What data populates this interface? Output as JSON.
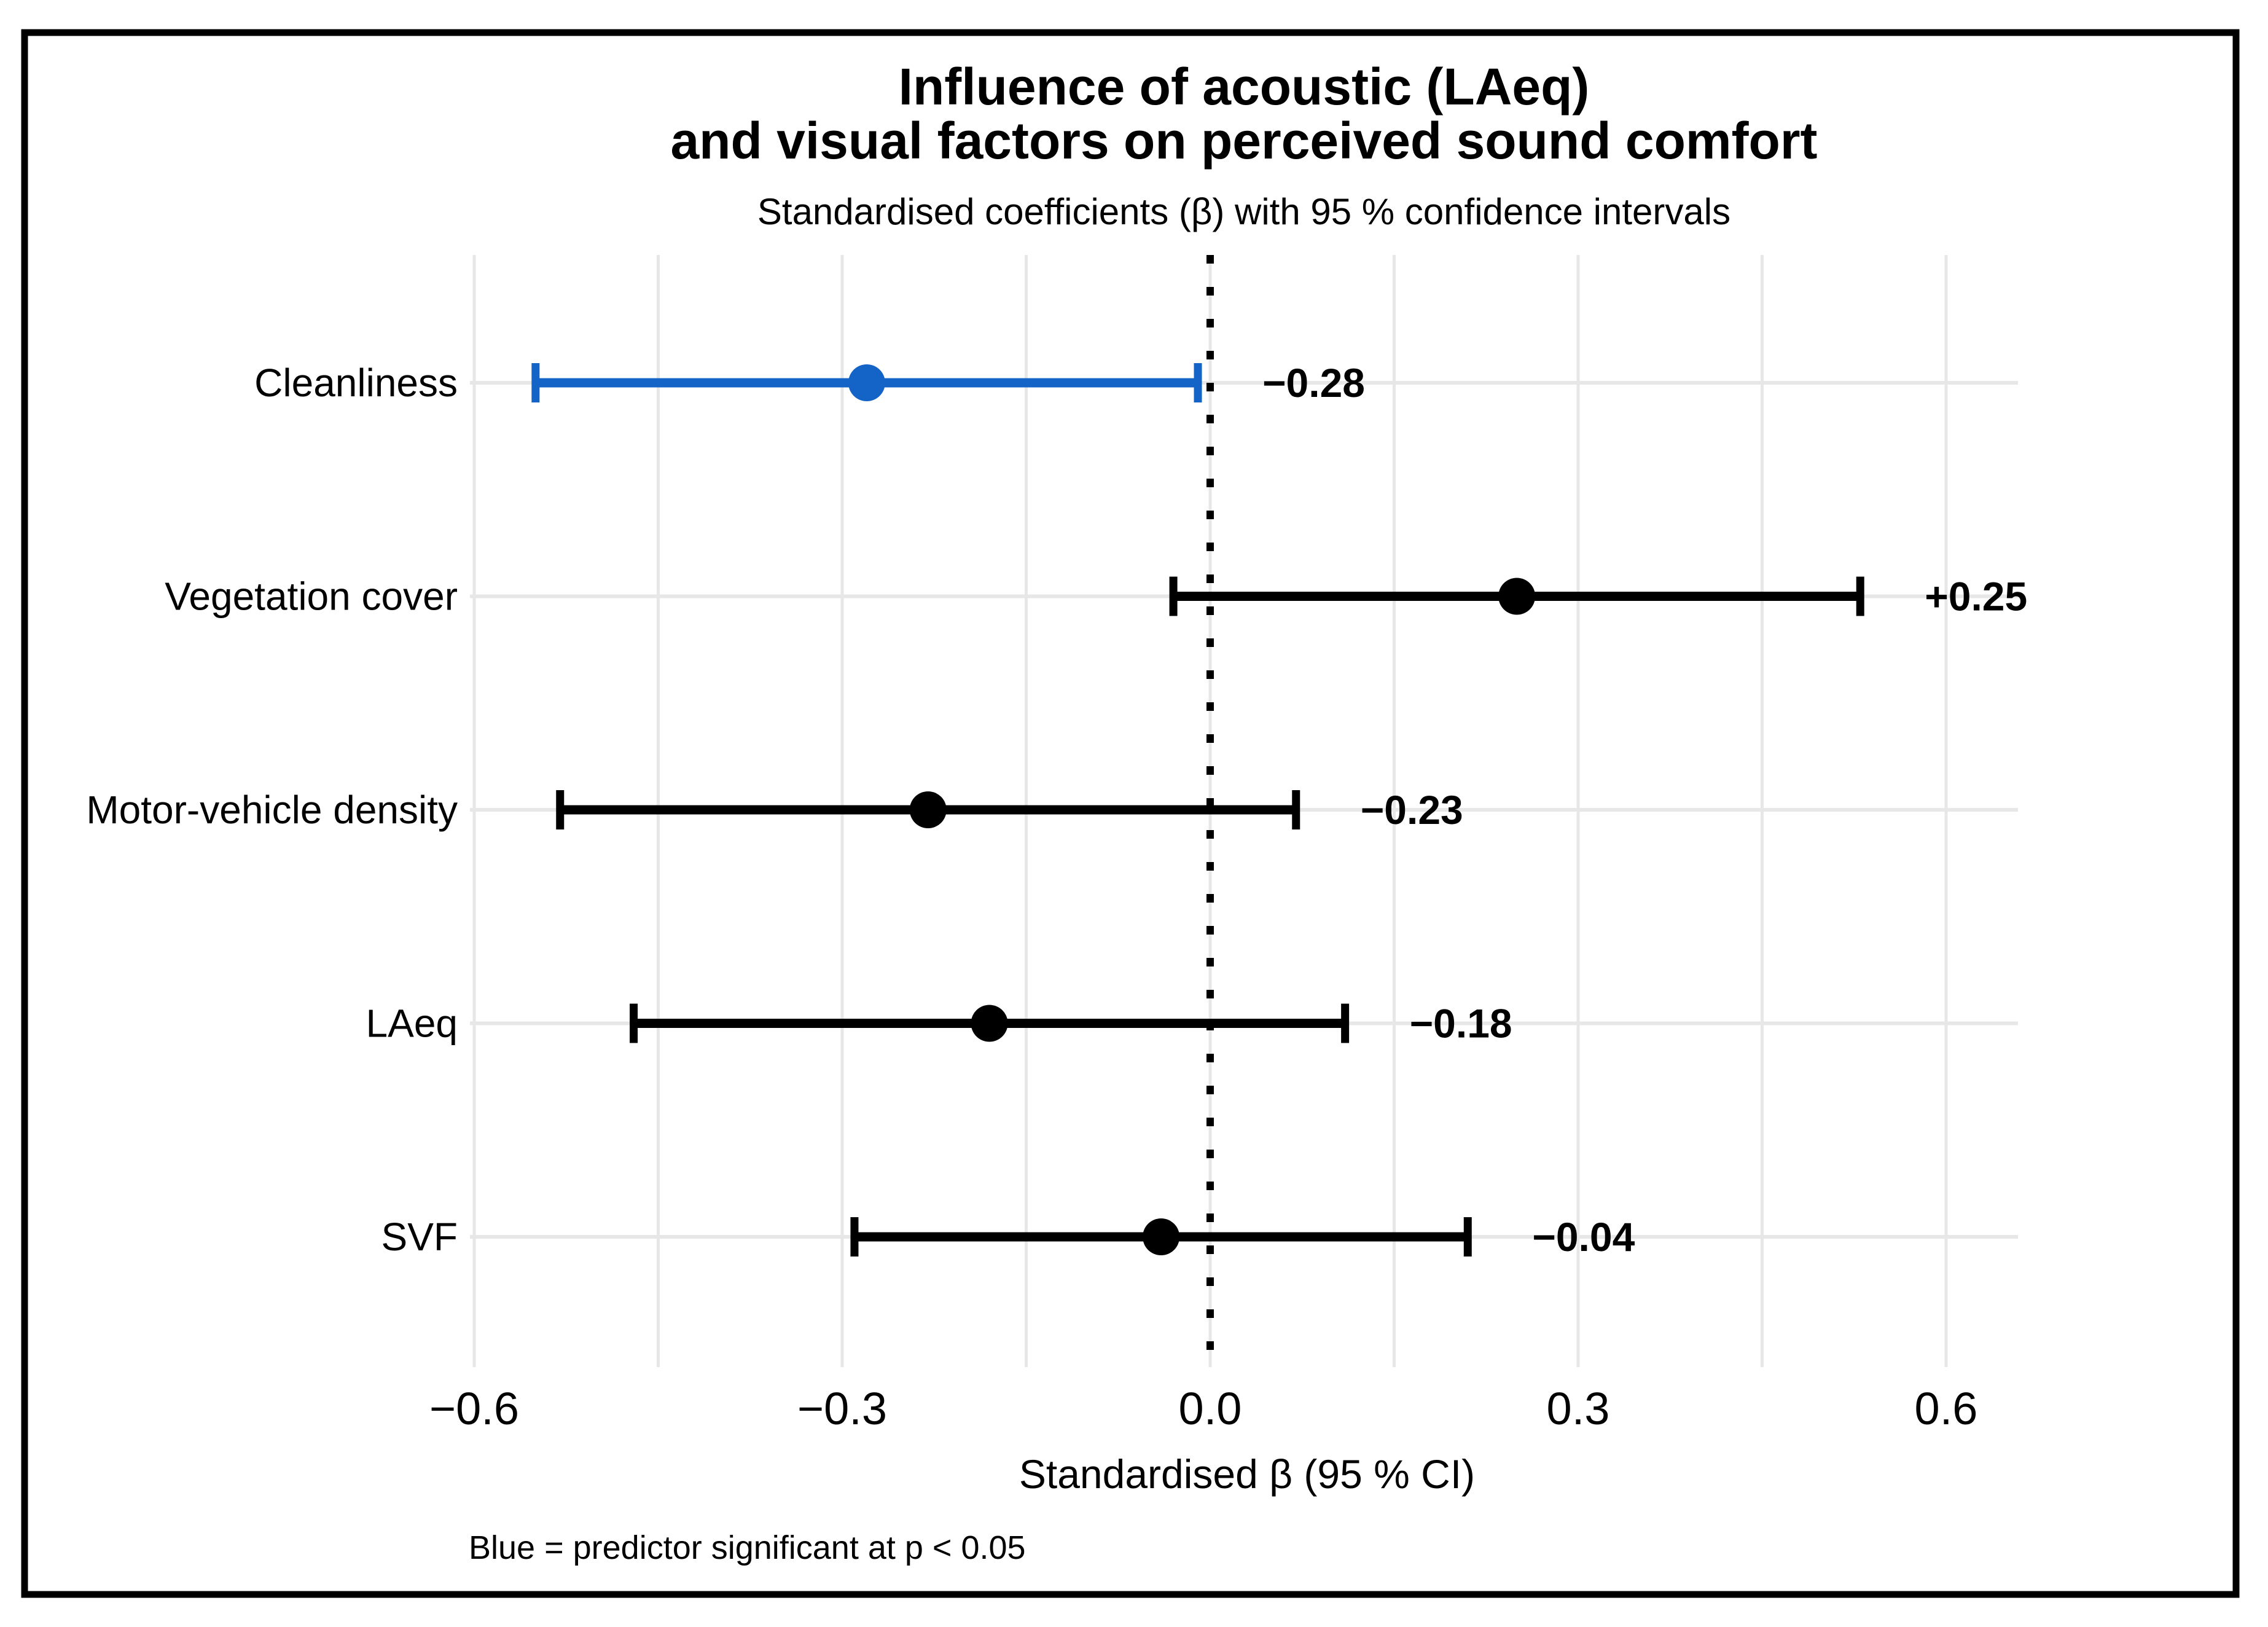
{
  "figure": {
    "background": "#ffffff",
    "border_color": "#000000"
  },
  "chart_data": {
    "type": "scatter",
    "subtype": "horizontal-forest-plot-with-error-bars",
    "title_line1": "Influence of acoustic (LAeq)",
    "title_line2": "and visual factors on perceived sound comfort",
    "subtitle": "Standardised coefficients (β) with 95 % confidence intervals",
    "xlabel": "Standardised β  (95 % CI)",
    "caption": "Blue = predictor significant at p < 0.05",
    "categories": [
      "Cleanliness",
      "Vegetation cover",
      "Motor-vehicle density",
      "LAeq",
      "SVF"
    ],
    "series": [
      {
        "name": "Standardised β",
        "values": [
          -0.28,
          0.25,
          -0.23,
          -0.18,
          -0.04
        ],
        "ci_low": [
          -0.55,
          -0.03,
          -0.53,
          -0.47,
          -0.29
        ],
        "ci_high": [
          -0.01,
          0.53,
          0.07,
          0.11,
          0.21
        ]
      }
    ],
    "value_labels": [
      "−0.28",
      "+0.25",
      "−0.23",
      "−0.18",
      "−0.04"
    ],
    "significant": [
      true,
      false,
      false,
      false,
      false
    ],
    "x_ticks": [
      -0.6,
      -0.3,
      0.0,
      0.3,
      0.6
    ],
    "x_tick_labels": [
      "−0.6",
      "−0.3",
      "0.0",
      "0.3",
      "0.6"
    ],
    "xlim": [
      -0.6035,
      0.6586
    ],
    "grid_step": 0.15,
    "zero_line_style": "dotted",
    "grid": true,
    "legend": false,
    "colors": {
      "significant": "#1364C6",
      "nonsignificant": "#000000",
      "grid": "#E7E7E7",
      "caption": "#8C8C8C"
    }
  }
}
